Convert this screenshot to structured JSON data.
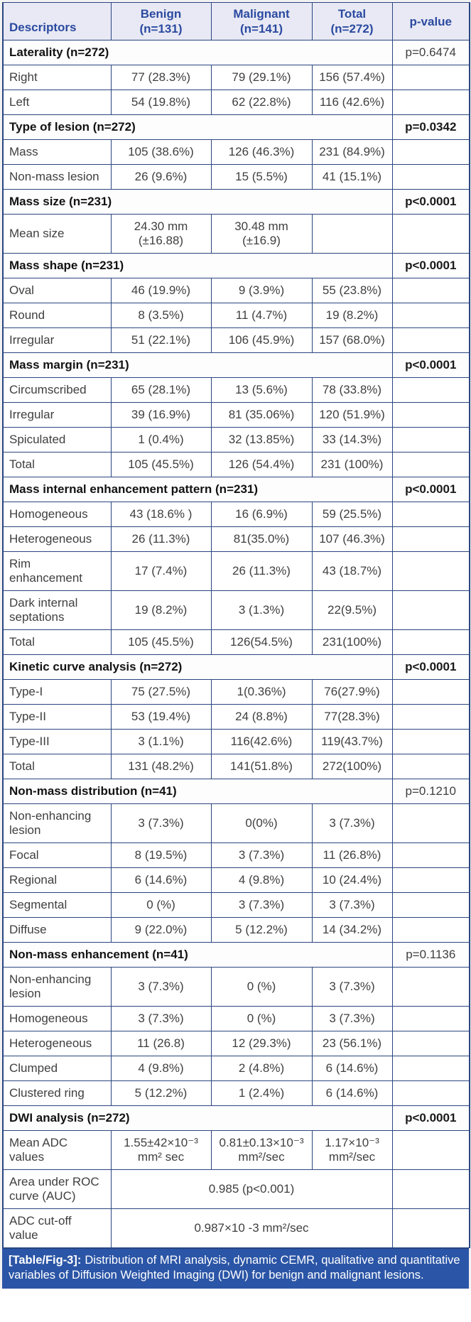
{
  "colors": {
    "border": "#2a4580",
    "header_bg": "#e8e9f4",
    "header_text": "#2b4aa0",
    "body_text": "#3f3f3f",
    "section_bg": "#fdfdfe",
    "caption_bg": "#2b55a6",
    "caption_text": "#ffffff"
  },
  "table": {
    "columns": [
      {
        "key": "descriptors",
        "label": "Descriptors",
        "sub": ""
      },
      {
        "key": "benign",
        "label": "Benign",
        "sub": "(n=131)"
      },
      {
        "key": "malignant",
        "label": "Malignant",
        "sub": "(n=141)"
      },
      {
        "key": "total",
        "label": "Total",
        "sub": "(n=272)"
      },
      {
        "key": "p-value",
        "label": "p-value",
        "sub": ""
      }
    ],
    "sections": [
      {
        "title": "Laterality (n=272)",
        "p_value": "p=0.6474",
        "p_bold": false,
        "rows": [
          {
            "label": "Right",
            "benign": "77 (28.3%)",
            "malignant": "79 (29.1%)",
            "total": "156 (57.4%)"
          },
          {
            "label": "Left",
            "benign": "54 (19.8%)",
            "malignant": "62 (22.8%)",
            "total": "116 (42.6%)"
          }
        ]
      },
      {
        "title": "Type of lesion (n=272)",
        "p_value": "p=0.0342",
        "p_bold": true,
        "rows": [
          {
            "label": "Mass",
            "benign": "105 (38.6%)",
            "malignant": "126 (46.3%)",
            "total": "231 (84.9%)"
          },
          {
            "label": "Non-mass lesion",
            "benign": "26 (9.6%)",
            "malignant": "15 (5.5%)",
            "total": "41 (15.1%)"
          }
        ]
      },
      {
        "title": "Mass size (n=231)",
        "p_value": "p<0.0001",
        "p_bold": true,
        "rows": [
          {
            "label": "Mean size",
            "benign": "24.30 mm\n(±16.88)",
            "malignant": "30.48 mm\n(±16.9)",
            "total": ""
          }
        ]
      },
      {
        "title": "Mass shape (n=231)",
        "p_value": "p<0.0001",
        "p_bold": true,
        "rows": [
          {
            "label": "Oval",
            "benign": "46 (19.9%)",
            "malignant": "9 (3.9%)",
            "total": "55 (23.8%)"
          },
          {
            "label": "Round",
            "benign": "8 (3.5%)",
            "malignant": "11 (4.7%)",
            "total": "19 (8.2%)"
          },
          {
            "label": "Irregular",
            "benign": "51 (22.1%)",
            "malignant": "106 (45.9%)",
            "total": "157 (68.0%)"
          }
        ]
      },
      {
        "title": "Mass margin (n=231)",
        "p_value": "p<0.0001",
        "p_bold": true,
        "rows": [
          {
            "label": "Circumscribed",
            "benign": "65 (28.1%)",
            "malignant": "13 (5.6%)",
            "total": "78 (33.8%)"
          },
          {
            "label": "Irregular",
            "benign": "39 (16.9%)",
            "malignant": "81 (35.06%)",
            "total": "120 (51.9%)"
          },
          {
            "label": "Spiculated",
            "benign": "1 (0.4%)",
            "malignant": "32 (13.85%)",
            "total": "33 (14.3%)"
          },
          {
            "label": "Total",
            "benign": "105 (45.5%)",
            "malignant": "126 (54.4%)",
            "total": "231 (100%)"
          }
        ]
      },
      {
        "title": "Mass internal enhancement pattern (n=231)",
        "p_value": "p<0.0001",
        "p_bold": true,
        "rows": [
          {
            "label": "Homogeneous",
            "benign": "43 (18.6% )",
            "malignant": "16 (6.9%)",
            "total": "59 (25.5%)"
          },
          {
            "label": "Heterogeneous",
            "benign": "26 (11.3%)",
            "malignant": "81(35.0%)",
            "total": "107 (46.3%)"
          },
          {
            "label": "Rim\nenhancement",
            "benign": "17 (7.4%)",
            "malignant": "26 (11.3%)",
            "total": "43 (18.7%)"
          },
          {
            "label": "Dark internal\nseptations",
            "benign": "19 (8.2%)",
            "malignant": "3 (1.3%)",
            "total": "22(9.5%)"
          },
          {
            "label": "Total",
            "benign": "105 (45.5%)",
            "malignant": "126(54.5%)",
            "total": "231(100%)"
          }
        ]
      },
      {
        "title": "Kinetic curve analysis (n=272)",
        "p_value": "p<0.0001",
        "p_bold": true,
        "rows": [
          {
            "label": "Type-I",
            "benign": "75 (27.5%)",
            "malignant": "1(0.36%)",
            "total": "76(27.9%)"
          },
          {
            "label": "Type-II",
            "benign": "53 (19.4%)",
            "malignant": "24 (8.8%)",
            "total": "77(28.3%)"
          },
          {
            "label": "Type-III",
            "benign": "3 (1.1%)",
            "malignant": "116(42.6%)",
            "total": "119(43.7%)"
          },
          {
            "label": "Total",
            "benign": "131 (48.2%)",
            "malignant": "141(51.8%)",
            "total": "272(100%)"
          }
        ]
      },
      {
        "title": "Non-mass distribution (n=41)",
        "p_value": "p=0.1210",
        "p_bold": false,
        "rows": [
          {
            "label": "Non-enhancing\nlesion",
            "benign": "3 (7.3%)",
            "malignant": "0(0%)",
            "total": "3 (7.3%)"
          },
          {
            "label": "Focal",
            "benign": "8 (19.5%)",
            "malignant": "3 (7.3%)",
            "total": "11 (26.8%)"
          },
          {
            "label": "Regional",
            "benign": "6 (14.6%)",
            "malignant": "4 (9.8%)",
            "total": "10 (24.4%)"
          },
          {
            "label": "Segmental",
            "benign": "0 (%)",
            "malignant": "3 (7.3%)",
            "total": "3 (7.3%)"
          },
          {
            "label": "Diffuse",
            "benign": "9 (22.0%)",
            "malignant": "5 (12.2%)",
            "total": "14 (34.2%)"
          }
        ]
      },
      {
        "title": "Non-mass enhancement (n=41)",
        "p_value": "p=0.1136",
        "p_bold": false,
        "rows": [
          {
            "label": "Non-enhancing\nlesion",
            "benign": "3 (7.3%)",
            "malignant": "0 (%)",
            "total": "3 (7.3%)"
          },
          {
            "label": "Homogeneous",
            "benign": "3 (7.3%)",
            "malignant": "0 (%)",
            "total": "3 (7.3%)"
          },
          {
            "label": "Heterogeneous",
            "benign": "11 (26.8)",
            "malignant": "12 (29.3%)",
            "total": "23 (56.1%)"
          },
          {
            "label": "Clumped",
            "benign": "4 (9.8%)",
            "malignant": "2 (4.8%)",
            "total": "6 (14.6%)"
          },
          {
            "label": "Clustered ring",
            "benign": "5 (12.2%)",
            "malignant": "1 (2.4%)",
            "total": "6 (14.6%)"
          }
        ]
      },
      {
        "title": "DWI analysis (n=272)",
        "p_value": "p<0.0001",
        "p_bold": true,
        "rows": [
          {
            "label": "Mean ADC\nvalues",
            "benign": "1.55±42×10⁻³\nmm² sec",
            "malignant": "0.81±0.13×10⁻³\nmm²/sec",
            "total": "1.17×10⁻³\nmm²/sec"
          },
          {
            "label": "Area under ROC\ncurve (AUC)",
            "span": "0.985 (p<0.001)"
          },
          {
            "label": "ADC cut-off\nvalue",
            "span": "0.987×10 -3 mm²/sec"
          }
        ]
      }
    ]
  },
  "caption": {
    "label": "[Table/Fig-3]:",
    "text": "Distribution of MRI analysis, dynamic CEMR, qualitative and quantitative variables of Diffusion Weighted Imaging (DWI) for benign and malignant lesions."
  }
}
